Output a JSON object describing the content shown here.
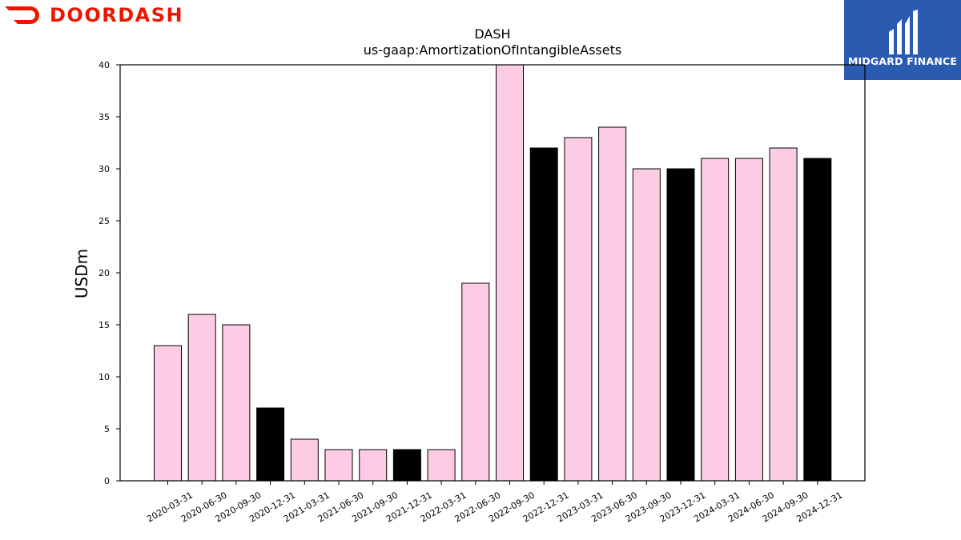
{
  "brand": {
    "name": "DOORDASH",
    "color": "#eb1700"
  },
  "partner": {
    "name": "MIDGARD FINANCE",
    "bg_color": "#2b5bb0"
  },
  "chart_data": {
    "type": "bar",
    "title": "DASH",
    "subtitle": "us-gaap:AmortizationOfIntangibleAssets",
    "xlabel": "",
    "ylabel": "USDm",
    "ylim": [
      0,
      40
    ],
    "yticks": [
      0,
      5,
      10,
      15,
      20,
      25,
      30,
      35,
      40
    ],
    "grid": false,
    "categories": [
      "2020-03-31",
      "2020-06-30",
      "2020-09-30",
      "2020-12-31",
      "2021-03-31",
      "2021-06-30",
      "2021-09-30",
      "2021-12-31",
      "2022-03-31",
      "2022-06-30",
      "2022-09-30",
      "2022-12-31",
      "2023-03-31",
      "2023-06-30",
      "2023-09-30",
      "2023-12-31",
      "2024-03-31",
      "2024-06-30",
      "2024-09-30",
      "2024-12-31"
    ],
    "values": [
      13,
      16,
      15,
      7,
      4,
      3,
      3,
      3,
      3,
      19,
      41,
      32,
      33,
      34,
      30,
      30,
      31,
      31,
      32,
      31
    ],
    "bar_colors": [
      "#fccce4",
      "#fccce4",
      "#fccce4",
      "#000000",
      "#fccce4",
      "#fccce4",
      "#fccce4",
      "#000000",
      "#fccce4",
      "#fccce4",
      "#fccce4",
      "#000000",
      "#fccce4",
      "#fccce4",
      "#fccce4",
      "#000000",
      "#fccce4",
      "#fccce4",
      "#fccce4",
      "#000000"
    ]
  }
}
